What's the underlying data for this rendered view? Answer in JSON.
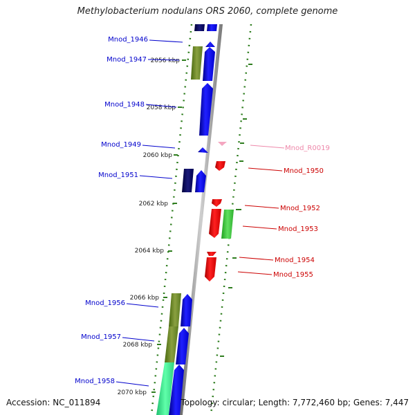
{
  "title": "Methylobacterium nodulans ORS 2060, complete genome",
  "footer": {
    "accession": "Accession: NC_011894",
    "summary": "Topology: circular; Length: 7,772,460 bp; Genes: 7,447"
  },
  "ticks": [
    "2056 kbp",
    "2058 kbp",
    "2060 kbp",
    "2062 kbp",
    "2064 kbp",
    "2066 kbp",
    "2068 kbp",
    "2070 kbp"
  ],
  "genes_forward": [
    "Mnod_1946",
    "Mnod_1947",
    "Mnod_1948",
    "Mnod_1949",
    "Mnod_1951",
    "Mnod_1956",
    "Mnod_1957",
    "Mnod_1958"
  ],
  "genes_reverse": [
    "Mnod_R0019",
    "Mnod_1950",
    "Mnod_1952",
    "Mnod_1953",
    "Mnod_1954",
    "Mnod_1955"
  ],
  "colors": {
    "forward_label": "#0000cc",
    "reverse_label": "#cc0000",
    "rna_label": "#ee88aa",
    "backbone": "#999999",
    "tick": "#2e7d1e"
  }
}
